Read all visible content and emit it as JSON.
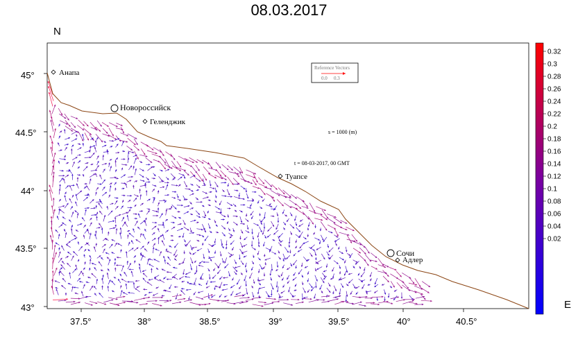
{
  "title": "08.03.2017",
  "axes": {
    "north_label": "N",
    "east_label": "E",
    "lat_ticks": [
      "45°",
      "44.5°",
      "44°",
      "43.5°",
      "43°"
    ],
    "lon_ticks": [
      "37.5°",
      "38°",
      "38.5°",
      "39°",
      "39.5°",
      "40°",
      "40.5°"
    ],
    "lat_range": [
      43.0,
      45.2
    ],
    "lon_range": [
      37.2,
      41.0
    ]
  },
  "places": [
    {
      "name": "Анапа",
      "lon": 37.32,
      "lat": 45.0,
      "marker": "diamond"
    },
    {
      "name": "Новороссийск",
      "lon": 37.78,
      "lat": 44.72,
      "marker": "circle"
    },
    {
      "name": "Геленджик",
      "lon": 38.01,
      "lat": 44.6,
      "marker": "diamond"
    },
    {
      "name": "Туапсе",
      "lon": 39.07,
      "lat": 44.1,
      "marker": "diamond"
    },
    {
      "name": "Сочи",
      "lon": 39.72,
      "lat": 43.6,
      "marker": "circle"
    },
    {
      "name": "Адлер",
      "lon": 39.93,
      "lat": 43.43,
      "marker": "diamond"
    }
  ],
  "annotations": {
    "scale_note": "s = 1000 (m)",
    "time_note": "t = 08-03-2017, 00 GMT",
    "reference_title": "Reference Vectors",
    "reference_left": "0.0",
    "reference_right": "0.3"
  },
  "colorbar": {
    "ticks": [
      "0.32",
      "0.3",
      "0.28",
      "0.26",
      "0.24",
      "0.22",
      "0.2",
      "0.18",
      "0.16",
      "0.14",
      "0.12",
      "0.1",
      "0.08",
      "0.06",
      "0.04",
      "0.02"
    ],
    "min": 0.0,
    "max": 0.33,
    "color_low": "#0000ff",
    "color_high": "#ff0000"
  },
  "coastline_color": "#8b4513",
  "vector_color_default": "#3a22cc"
}
